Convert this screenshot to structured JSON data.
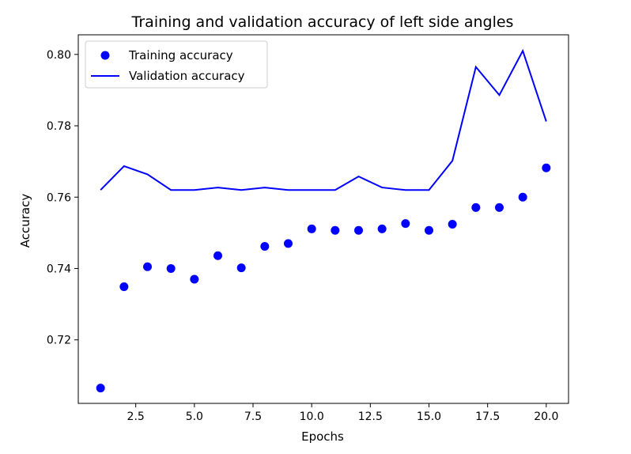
{
  "chart_data": {
    "type": "line",
    "title": "Training and validation accuracy of left side angles",
    "xlabel": "Epochs",
    "ylabel": "Accuracy",
    "xlim": [
      0.05,
      20.95
    ],
    "ylim": [
      0.7022,
      0.8055
    ],
    "xticks": [
      2.5,
      5.0,
      7.5,
      10.0,
      12.5,
      15.0,
      17.5,
      20.0
    ],
    "xtick_labels": [
      "2.5",
      "5.0",
      "7.5",
      "10.0",
      "12.5",
      "15.0",
      "17.5",
      "20.0"
    ],
    "yticks": [
      0.72,
      0.74,
      0.76,
      0.78,
      0.8
    ],
    "ytick_labels": [
      "0.72",
      "0.74",
      "0.76",
      "0.78",
      "0.80"
    ],
    "grid": false,
    "legend_position": "top-left",
    "series": [
      {
        "name": "Training accuracy",
        "style": "markers",
        "color": "#0000ff",
        "x": [
          1,
          2,
          3,
          4,
          5,
          6,
          7,
          8,
          9,
          10,
          11,
          12,
          13,
          14,
          15,
          16,
          17,
          18,
          19,
          20
        ],
        "values": [
          0.7065,
          0.7349,
          0.7405,
          0.74,
          0.737,
          0.7436,
          0.7402,
          0.7462,
          0.747,
          0.7511,
          0.7507,
          0.7507,
          0.7511,
          0.7526,
          0.7507,
          0.7524,
          0.7571,
          0.7571,
          0.76,
          0.7682
        ]
      },
      {
        "name": "Validation accuracy",
        "style": "line",
        "color": "#0000ff",
        "x": [
          1,
          2,
          3,
          4,
          5,
          6,
          7,
          8,
          9,
          10,
          11,
          12,
          13,
          14,
          15,
          16,
          17,
          18,
          19,
          20
        ],
        "values": [
          0.762,
          0.7687,
          0.7664,
          0.762,
          0.762,
          0.7627,
          0.762,
          0.7627,
          0.762,
          0.762,
          0.762,
          0.7658,
          0.7627,
          0.762,
          0.762,
          0.7702,
          0.7965,
          0.7886,
          0.801,
          0.7812
        ]
      }
    ]
  }
}
